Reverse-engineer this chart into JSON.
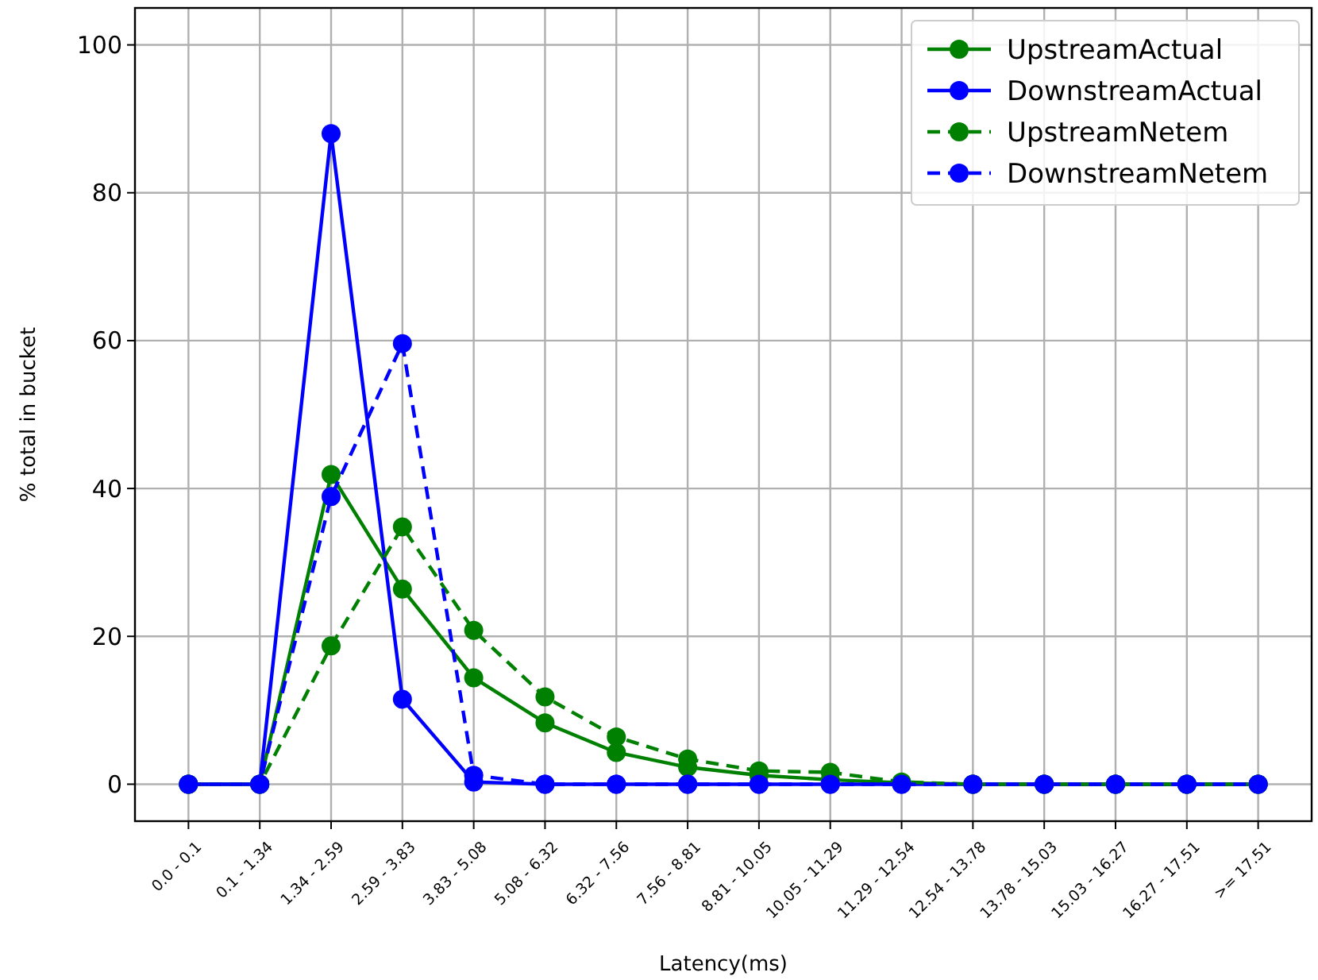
{
  "chart_data": {
    "type": "line",
    "xlabel": "Latency(ms)",
    "ylabel": "% total in bucket",
    "categories": [
      "0.0 - 0.1",
      "0.1 - 1.34",
      "1.34 - 2.59",
      "2.59 - 3.83",
      "3.83 - 5.08",
      "5.08 - 6.32",
      "6.32 - 7.56",
      "7.56 - 8.81",
      "8.81 - 10.05",
      "10.05 - 11.29",
      "11.29 - 12.54",
      "12.54 - 13.78",
      "13.78 - 15.03",
      "15.03 - 16.27",
      "16.27 - 17.51",
      ">= 17.51"
    ],
    "series": [
      {
        "name": "UpstreamActual",
        "color": "#008000",
        "line_style": "solid",
        "values": [
          0,
          0,
          41.9,
          26.4,
          14.4,
          8.3,
          4.3,
          2.3,
          1.2,
          0.6,
          0.2,
          0,
          0,
          0,
          0,
          0
        ]
      },
      {
        "name": "DownstreamActual",
        "color": "#0000ff",
        "line_style": "solid",
        "values": [
          0,
          0,
          88,
          11.5,
          0.3,
          0,
          0,
          0,
          0,
          0,
          0,
          0,
          0,
          0,
          0,
          0
        ]
      },
      {
        "name": "UpstreamNetem",
        "color": "#008000",
        "line_style": "dashed",
        "values": [
          0,
          0,
          18.7,
          34.8,
          20.8,
          11.8,
          6.4,
          3.4,
          1.8,
          1.6,
          0.3,
          0,
          0,
          0,
          0,
          0
        ]
      },
      {
        "name": "DownstreamNetem",
        "color": "#0000ff",
        "line_style": "dashed",
        "values": [
          0,
          0,
          38.9,
          59.6,
          1.2,
          0,
          0,
          0,
          0,
          0,
          0,
          0,
          0,
          0,
          0,
          0
        ]
      }
    ],
    "ylim": [
      -5,
      105
    ],
    "yticks": [
      0,
      20,
      40,
      60,
      80,
      100
    ],
    "grid": true,
    "legend": "top right",
    "marker": "circle"
  }
}
